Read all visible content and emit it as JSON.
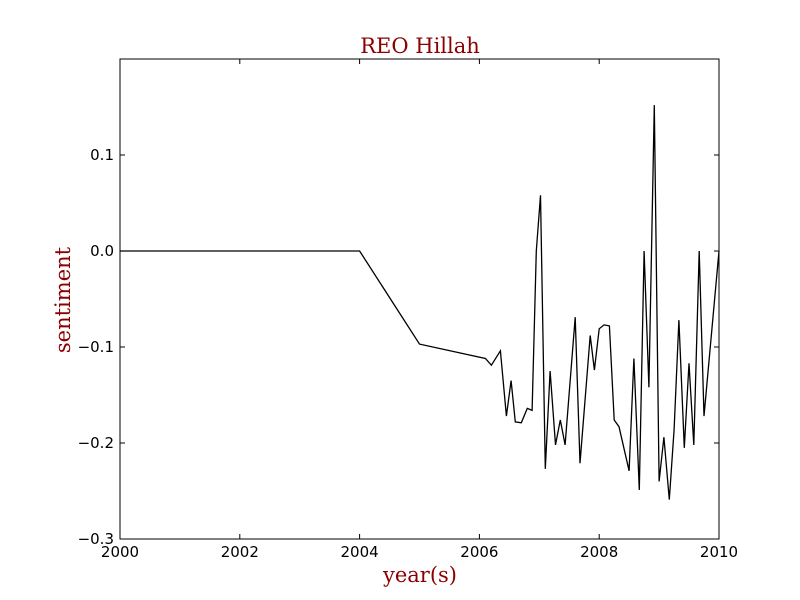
{
  "chart_data": {
    "type": "line",
    "title": "REO Hillah",
    "xlabel": "year(s)",
    "ylabel": "sentiment",
    "xlim": [
      2000,
      2010
    ],
    "ylim": [
      -0.3,
      0.2
    ],
    "x_ticks": [
      2000,
      2002,
      2004,
      2006,
      2008,
      2010
    ],
    "x_tick_labels": [
      "2000",
      "2002",
      "2004",
      "2006",
      "2008",
      "2010"
    ],
    "y_ticks": [
      -0.3,
      -0.2,
      -0.1,
      0.0,
      0.1
    ],
    "y_tick_labels": [
      "−0.3",
      "−0.2",
      "−0.1",
      "0.0",
      "0.1"
    ],
    "grid": false,
    "colors": {
      "title": "#8b0000",
      "axis_label": "#8b0000",
      "line": "#000000"
    },
    "series": [
      {
        "x": [
          2000.0,
          2004.0,
          2005.0,
          2006.1,
          2006.2,
          2006.35,
          2006.45,
          2006.53,
          2006.6,
          2006.7,
          2006.8,
          2006.88,
          2006.95,
          2007.02,
          2007.1,
          2007.18,
          2007.27,
          2007.35,
          2007.43,
          2007.6,
          2007.68,
          2007.85,
          2007.92,
          2008.0,
          2008.08,
          2008.17,
          2008.25,
          2008.33,
          2008.5,
          2008.58,
          2008.67,
          2008.75,
          2008.83,
          2008.92,
          2009.0,
          2009.08,
          2009.17,
          2009.25,
          2009.33,
          2009.42,
          2009.5,
          2009.58,
          2009.67,
          2009.75,
          2010.0
        ],
        "y": [
          0.0,
          0.0,
          -0.097,
          -0.112,
          -0.119,
          -0.104,
          -0.172,
          -0.135,
          -0.178,
          -0.179,
          -0.164,
          -0.166,
          0.0,
          0.058,
          -0.227,
          -0.125,
          -0.202,
          -0.176,
          -0.202,
          -0.069,
          -0.221,
          -0.088,
          -0.124,
          -0.081,
          -0.077,
          -0.078,
          -0.176,
          -0.183,
          -0.229,
          -0.112,
          -0.249,
          0.0,
          -0.142,
          0.152,
          -0.24,
          -0.194,
          -0.259,
          -0.186,
          -0.072,
          -0.205,
          -0.117,
          -0.202,
          0.0,
          -0.172,
          0.0
        ]
      }
    ]
  }
}
